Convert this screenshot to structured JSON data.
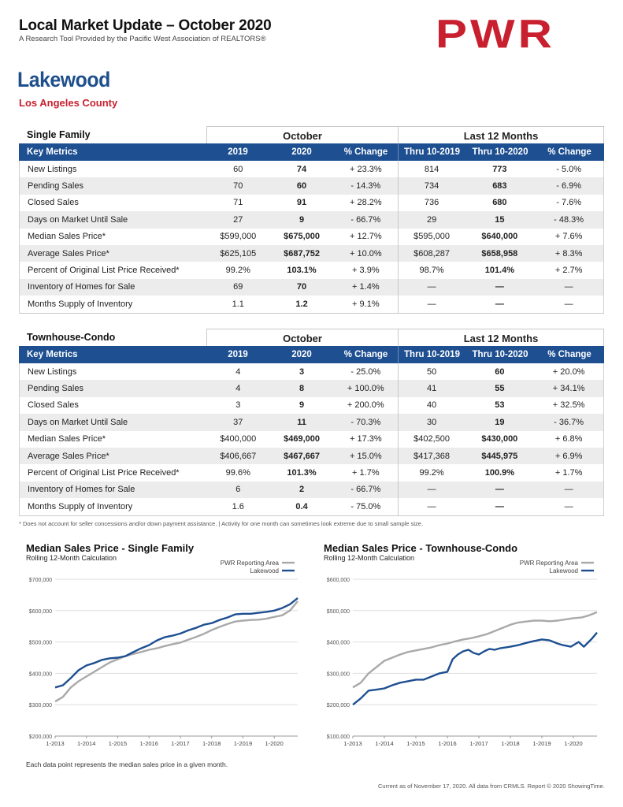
{
  "header": {
    "title": "Local Market Update – October 2020",
    "subtitle": "A Research Tool Provided by the Pacific West Association of REALTORS®",
    "logo": "PWR",
    "city": "Lakewood",
    "county": "Los Angeles County"
  },
  "tables": [
    {
      "name": "Single Family",
      "group_october": "October",
      "group_12": "Last 12 Months",
      "columns": [
        "Key Metrics",
        "2019",
        "2020",
        "% Change",
        "Thru 10-2019",
        "Thru 10-2020",
        "% Change"
      ],
      "rows": [
        [
          "New Listings",
          "60",
          "74",
          "+ 23.3%",
          "814",
          "773",
          "- 5.0%"
        ],
        [
          "Pending Sales",
          "70",
          "60",
          "- 14.3%",
          "734",
          "683",
          "- 6.9%"
        ],
        [
          "Closed Sales",
          "71",
          "91",
          "+ 28.2%",
          "736",
          "680",
          "- 7.6%"
        ],
        [
          "Days on Market Until Sale",
          "27",
          "9",
          "- 66.7%",
          "29",
          "15",
          "- 48.3%"
        ],
        [
          "Median Sales Price*",
          "$599,000",
          "$675,000",
          "+ 12.7%",
          "$595,000",
          "$640,000",
          "+ 7.6%"
        ],
        [
          "Average Sales Price*",
          "$625,105",
          "$687,752",
          "+ 10.0%",
          "$608,287",
          "$658,958",
          "+ 8.3%"
        ],
        [
          "Percent of Original List Price Received*",
          "99.2%",
          "103.1%",
          "+ 3.9%",
          "98.7%",
          "101.4%",
          "+ 2.7%"
        ],
        [
          "Inventory of Homes for Sale",
          "69",
          "70",
          "+ 1.4%",
          "—",
          "—",
          "—"
        ],
        [
          "Months Supply of Inventory",
          "1.1",
          "1.2",
          "+ 9.1%",
          "—",
          "—",
          "—"
        ]
      ]
    },
    {
      "name": "Townhouse-Condo",
      "group_october": "October",
      "group_12": "Last 12 Months",
      "columns": [
        "Key Metrics",
        "2019",
        "2020",
        "% Change",
        "Thru 10-2019",
        "Thru 10-2020",
        "% Change"
      ],
      "rows": [
        [
          "New Listings",
          "4",
          "3",
          "- 25.0%",
          "50",
          "60",
          "+ 20.0%"
        ],
        [
          "Pending Sales",
          "4",
          "8",
          "+ 100.0%",
          "41",
          "55",
          "+ 34.1%"
        ],
        [
          "Closed Sales",
          "3",
          "9",
          "+ 200.0%",
          "40",
          "53",
          "+ 32.5%"
        ],
        [
          "Days on Market Until Sale",
          "37",
          "11",
          "- 70.3%",
          "30",
          "19",
          "- 36.7%"
        ],
        [
          "Median Sales Price*",
          "$400,000",
          "$469,000",
          "+ 17.3%",
          "$402,500",
          "$430,000",
          "+ 6.8%"
        ],
        [
          "Average Sales Price*",
          "$406,667",
          "$467,667",
          "+ 15.0%",
          "$417,368",
          "$445,975",
          "+ 6.9%"
        ],
        [
          "Percent of Original List Price Received*",
          "99.6%",
          "101.3%",
          "+ 1.7%",
          "99.2%",
          "100.9%",
          "+ 1.7%"
        ],
        [
          "Inventory of Homes for Sale",
          "6",
          "2",
          "- 66.7%",
          "—",
          "—",
          "—"
        ],
        [
          "Months Supply of Inventory",
          "1.6",
          "0.4",
          "- 75.0%",
          "—",
          "—",
          "—"
        ]
      ]
    }
  ],
  "footnote": "* Does not account for seller concessions and/or down payment assistance. | Activity for one month can sometimes look extreme due to small sample size.",
  "chart_note": "Each data point represents the median sales price in a given month.",
  "footer": "Current as of November 17, 2020. All data from CRMLS. Report © 2020 ShowingTime.",
  "colors": {
    "pwr": "#a9a9a9",
    "lakewood": "#1d4f91",
    "brand_red": "#c8202f"
  },
  "chart_data": [
    {
      "type": "line",
      "title": "Median Sales Price - Single Family",
      "subtitle": "Rolling 12-Month Calculation",
      "x_ticks": [
        "1-2013",
        "1-2014",
        "1-2015",
        "1-2016",
        "1-2017",
        "1-2018",
        "1-2019",
        "1-2020"
      ],
      "y_ticks": [
        "$200,000",
        "$300,000",
        "$400,000",
        "$500,000",
        "$600,000",
        "$700,000"
      ],
      "ylim": [
        200000,
        700000
      ],
      "x_range": [
        0,
        93
      ],
      "legend": "top-right",
      "series": [
        {
          "name": "PWR Reporting Area",
          "color": "#a9a9a9",
          "points": [
            [
              0,
              310000
            ],
            [
              3,
              325000
            ],
            [
              6,
              355000
            ],
            [
              9,
              375000
            ],
            [
              12,
              390000
            ],
            [
              15,
              405000
            ],
            [
              18,
              420000
            ],
            [
              21,
              435000
            ],
            [
              24,
              445000
            ],
            [
              27,
              455000
            ],
            [
              30,
              462000
            ],
            [
              33,
              468000
            ],
            [
              36,
              475000
            ],
            [
              39,
              480000
            ],
            [
              42,
              487000
            ],
            [
              45,
              493000
            ],
            [
              48,
              498000
            ],
            [
              51,
              507000
            ],
            [
              54,
              516000
            ],
            [
              57,
              526000
            ],
            [
              60,
              538000
            ],
            [
              63,
              548000
            ],
            [
              66,
              557000
            ],
            [
              69,
              565000
            ],
            [
              72,
              568000
            ],
            [
              75,
              570000
            ],
            [
              78,
              571000
            ],
            [
              81,
              574000
            ],
            [
              84,
              580000
            ],
            [
              87,
              585000
            ],
            [
              90,
              600000
            ],
            [
              93,
              630000
            ]
          ]
        },
        {
          "name": "Lakewood",
          "color": "#1d4f91",
          "points": [
            [
              0,
              355000
            ],
            [
              3,
              362000
            ],
            [
              6,
              385000
            ],
            [
              9,
              410000
            ],
            [
              12,
              425000
            ],
            [
              15,
              433000
            ],
            [
              18,
              443000
            ],
            [
              21,
              448000
            ],
            [
              24,
              450000
            ],
            [
              27,
              455000
            ],
            [
              30,
              468000
            ],
            [
              33,
              480000
            ],
            [
              36,
              490000
            ],
            [
              39,
              505000
            ],
            [
              42,
              515000
            ],
            [
              45,
              520000
            ],
            [
              48,
              527000
            ],
            [
              51,
              537000
            ],
            [
              54,
              545000
            ],
            [
              57,
              555000
            ],
            [
              60,
              560000
            ],
            [
              63,
              570000
            ],
            [
              66,
              578000
            ],
            [
              69,
              588000
            ],
            [
              72,
              590000
            ],
            [
              75,
              590000
            ],
            [
              78,
              593000
            ],
            [
              81,
              596000
            ],
            [
              84,
              600000
            ],
            [
              87,
              608000
            ],
            [
              90,
              620000
            ],
            [
              93,
              640000
            ]
          ]
        }
      ]
    },
    {
      "type": "line",
      "title": "Median Sales Price - Townhouse-Condo",
      "subtitle": "Rolling 12-Month Calculation",
      "x_ticks": [
        "1-2013",
        "1-2014",
        "1-2015",
        "1-2016",
        "1-2017",
        "1-2018",
        "1-2019",
        "1-2020"
      ],
      "y_ticks": [
        "$100,000",
        "$200,000",
        "$300,000",
        "$400,000",
        "$500,000",
        "$600,000"
      ],
      "ylim": [
        100000,
        600000
      ],
      "x_range": [
        0,
        93
      ],
      "legend": "top-right",
      "series": [
        {
          "name": "PWR Reporting Area",
          "color": "#a9a9a9",
          "points": [
            [
              0,
              255000
            ],
            [
              3,
              270000
            ],
            [
              6,
              300000
            ],
            [
              9,
              320000
            ],
            [
              12,
              340000
            ],
            [
              15,
              350000
            ],
            [
              18,
              360000
            ],
            [
              21,
              368000
            ],
            [
              24,
              373000
            ],
            [
              27,
              378000
            ],
            [
              30,
              383000
            ],
            [
              33,
              390000
            ],
            [
              36,
              395000
            ],
            [
              39,
              402000
            ],
            [
              42,
              408000
            ],
            [
              45,
              412000
            ],
            [
              48,
              418000
            ],
            [
              51,
              425000
            ],
            [
              54,
              435000
            ],
            [
              57,
              445000
            ],
            [
              60,
              455000
            ],
            [
              63,
              462000
            ],
            [
              66,
              465000
            ],
            [
              69,
              468000
            ],
            [
              72,
              468000
            ],
            [
              75,
              466000
            ],
            [
              78,
              468000
            ],
            [
              81,
              472000
            ],
            [
              84,
              476000
            ],
            [
              87,
              478000
            ],
            [
              90,
              485000
            ],
            [
              93,
              495000
            ]
          ]
        },
        {
          "name": "Lakewood",
          "color": "#1d4f91",
          "points": [
            [
              0,
              200000
            ],
            [
              3,
              220000
            ],
            [
              6,
              245000
            ],
            [
              9,
              248000
            ],
            [
              12,
              252000
            ],
            [
              15,
              262000
            ],
            [
              18,
              270000
            ],
            [
              21,
              275000
            ],
            [
              24,
              280000
            ],
            [
              27,
              280000
            ],
            [
              30,
              290000
            ],
            [
              33,
              300000
            ],
            [
              36,
              305000
            ],
            [
              38,
              345000
            ],
            [
              40,
              360000
            ],
            [
              42,
              370000
            ],
            [
              44,
              375000
            ],
            [
              46,
              365000
            ],
            [
              48,
              360000
            ],
            [
              50,
              370000
            ],
            [
              52,
              378000
            ],
            [
              54,
              375000
            ],
            [
              56,
              380000
            ],
            [
              60,
              385000
            ],
            [
              63,
              390000
            ],
            [
              66,
              397000
            ],
            [
              69,
              403000
            ],
            [
              72,
              408000
            ],
            [
              75,
              405000
            ],
            [
              78,
              395000
            ],
            [
              80,
              390000
            ],
            [
              83,
              385000
            ],
            [
              86,
              400000
            ],
            [
              88,
              385000
            ],
            [
              91,
              410000
            ],
            [
              93,
              430000
            ]
          ]
        }
      ]
    }
  ]
}
